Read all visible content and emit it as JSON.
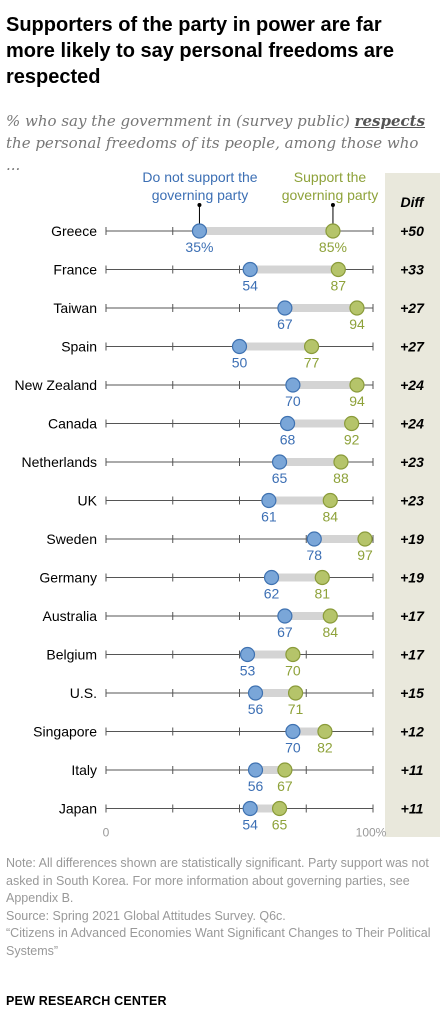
{
  "title": "Supporters of the party in power are far more likely to say personal freedoms are respected",
  "subtitle": {
    "before": "% who say the government in (survey public) ",
    "emphasis": "respects",
    "after": " the personal freedoms of its people, among those who ..."
  },
  "colors": {
    "not_support": "#7aa6d8",
    "not_support_stroke": "#3f72b1",
    "not_support_text": "#3c6fb4",
    "support": "#b5c46a",
    "support_stroke": "#8a9b3a",
    "support_text": "#8ea23a",
    "connector": "#d4d4d4",
    "axis": "#555555",
    "diff_bg": "#e9e8dc"
  },
  "chart_data": {
    "type": "dot",
    "xlim": [
      0,
      100
    ],
    "x_tick_labels": [
      "0",
      "100%"
    ],
    "diff_header": "Diff",
    "series": [
      {
        "name": "Do not support the governing party",
        "key": "not_support"
      },
      {
        "name": "Support the governing party",
        "key": "support"
      }
    ],
    "rows": [
      {
        "country": "Greece",
        "not_support": 35,
        "support": 85,
        "diff": "+50",
        "label_ns": "35%",
        "label_s": "85%"
      },
      {
        "country": "France",
        "not_support": 54,
        "support": 87,
        "diff": "+33",
        "label_ns": "54",
        "label_s": "87"
      },
      {
        "country": "Taiwan",
        "not_support": 67,
        "support": 94,
        "diff": "+27",
        "label_ns": "67",
        "label_s": "94"
      },
      {
        "country": "Spain",
        "not_support": 50,
        "support": 77,
        "diff": "+27",
        "label_ns": "50",
        "label_s": "77"
      },
      {
        "country": "New Zealand",
        "not_support": 70,
        "support": 94,
        "diff": "+24",
        "label_ns": "70",
        "label_s": "94"
      },
      {
        "country": "Canada",
        "not_support": 68,
        "support": 92,
        "diff": "+24",
        "label_ns": "68",
        "label_s": "92"
      },
      {
        "country": "Netherlands",
        "not_support": 65,
        "support": 88,
        "diff": "+23",
        "label_ns": "65",
        "label_s": "88"
      },
      {
        "country": "UK",
        "not_support": 61,
        "support": 84,
        "diff": "+23",
        "label_ns": "61",
        "label_s": "84"
      },
      {
        "country": "Sweden",
        "not_support": 78,
        "support": 97,
        "diff": "+19",
        "label_ns": "78",
        "label_s": "97"
      },
      {
        "country": "Germany",
        "not_support": 62,
        "support": 81,
        "diff": "+19",
        "label_ns": "62",
        "label_s": "81"
      },
      {
        "country": "Australia",
        "not_support": 67,
        "support": 84,
        "diff": "+17",
        "label_ns": "67",
        "label_s": "84"
      },
      {
        "country": "Belgium",
        "not_support": 53,
        "support": 70,
        "diff": "+17",
        "label_ns": "53",
        "label_s": "70"
      },
      {
        "country": "U.S.",
        "not_support": 56,
        "support": 71,
        "diff": "+15",
        "label_ns": "56",
        "label_s": "71"
      },
      {
        "country": "Singapore",
        "not_support": 70,
        "support": 82,
        "diff": "+12",
        "label_ns": "70",
        "label_s": "82"
      },
      {
        "country": "Italy",
        "not_support": 56,
        "support": 67,
        "diff": "+11",
        "label_ns": "56",
        "label_s": "67"
      },
      {
        "country": "Japan",
        "not_support": 54,
        "support": 65,
        "diff": "+11",
        "label_ns": "54",
        "label_s": "65"
      }
    ]
  },
  "notes": [
    "Note: All differences shown are statistically significant. Party support was not asked in South Korea. For more information about governing parties, see Appendix B.",
    "Source: Spring 2021 Global Attitudes Survey. Q6c.",
    "“Citizens in Advanced Economies Want Significant Changes to Their Political Systems”"
  ],
  "brand": "PEW RESEARCH CENTER"
}
